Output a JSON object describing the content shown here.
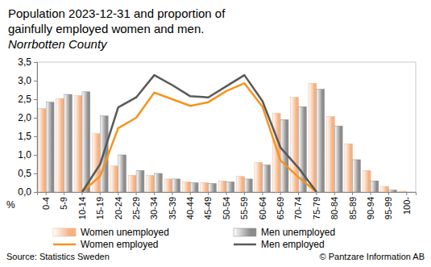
{
  "chart_data": {
    "type": "bar",
    "title": [
      "Population 2023-12-31 and proportion of",
      "gainfully employed women and men."
    ],
    "subtitle": "Norrbotten County",
    "y_label": "%",
    "source": "Source: Statistics Sweden",
    "credit": "© Pantzare Information AB",
    "categories": [
      "0-4",
      "5-9",
      "10-14",
      "15-19",
      "20-24",
      "25-29",
      "30-34",
      "35-39",
      "40-44",
      "45-49",
      "50-54",
      "55-59",
      "60-64",
      "65-69",
      "70-74",
      "75-79",
      "80-84",
      "85-89",
      "90-94",
      "95-99",
      "100-"
    ],
    "series": [
      {
        "name": "Women unemployed",
        "type": "bar",
        "color": "#f4b183",
        "values": [
          2.25,
          2.52,
          2.6,
          1.57,
          0.7,
          0.45,
          0.45,
          0.35,
          0.27,
          0.25,
          0.3,
          0.42,
          0.8,
          2.12,
          2.55,
          2.93,
          2.03,
          1.3,
          0.58,
          0.15,
          0.02
        ]
      },
      {
        "name": "Men unemployed",
        "type": "bar",
        "color": "#8c8c8c",
        "values": [
          2.42,
          2.63,
          2.7,
          2.05,
          1.0,
          0.58,
          0.5,
          0.35,
          0.25,
          0.23,
          0.27,
          0.35,
          0.73,
          1.95,
          2.3,
          2.77,
          1.78,
          0.87,
          0.3,
          0.05,
          0.0
        ]
      },
      {
        "name": "Women employed",
        "type": "line",
        "color": "#f7931e",
        "values": [
          null,
          null,
          0.0,
          0.43,
          1.72,
          2.0,
          2.68,
          2.5,
          2.32,
          2.42,
          2.72,
          2.93,
          2.3,
          0.85,
          0.4,
          0.0,
          null,
          null,
          null,
          null,
          null
        ]
      },
      {
        "name": "Men employed",
        "type": "line",
        "color": "#595959",
        "values": [
          null,
          null,
          0.0,
          0.75,
          2.28,
          2.55,
          3.15,
          2.88,
          2.58,
          2.55,
          2.85,
          3.15,
          2.45,
          1.2,
          0.65,
          0.0,
          null,
          null,
          null,
          null,
          null
        ]
      }
    ],
    "ylim": [
      0,
      3.5
    ],
    "yticks": [
      {
        "value": 0,
        "label": "0,0"
      },
      {
        "value": 0.5,
        "label": "0,5"
      },
      {
        "value": 1,
        "label": "1,0"
      },
      {
        "value": 1.5,
        "label": "1,5"
      },
      {
        "value": 2,
        "label": "2,0"
      },
      {
        "value": 2.5,
        "label": "2,5"
      },
      {
        "value": 3,
        "label": "3,0"
      },
      {
        "value": 3.5,
        "label": "3,5"
      }
    ],
    "grid": false,
    "legend": "bottom"
  }
}
